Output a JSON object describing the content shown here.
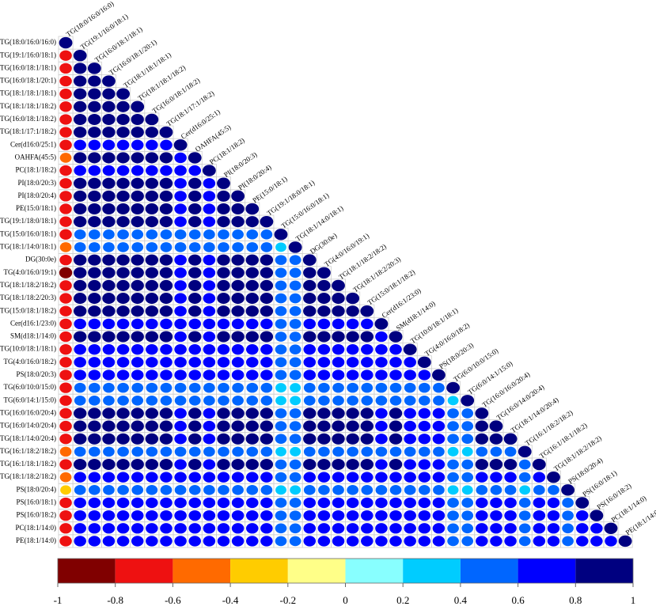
{
  "chart_data": {
    "type": "corrplot",
    "labels": [
      "TG(18:0/16:0/16:0)",
      "TG(19:1/16:0/18:1)",
      "TG(16:0/18:1/18:1)",
      "TG(16:0/18:1/20:1)",
      "TG(18:1/18:1/18:1)",
      "TG(18:1/18:1/18:2)",
      "TG(16:0/18:1/18:2)",
      "TG(18:1/17:1/18:2)",
      "Cer(d16:0/25:1)",
      "OAHFA(45:5)",
      "PC(18:1/18:2)",
      "PI(18:0/20:3)",
      "PI(18:0/20:4)",
      "PE(15:0/18:1)",
      "TG(19:1/18:0/18:1)",
      "TG(15:0/16:0/18:1)",
      "TG(18:1/14:0/18:1)",
      "DG(30:0e)",
      "TG(4:0/16:0/19:1)",
      "TG(18:1/18:2/18:2)",
      "TG(18:1/18:2/20:3)",
      "TG(15:0/18:1/18:2)",
      "Cer(d16:1/23:0)",
      "SM(d18:1/14:0)",
      "TG(10:0/18:1/18:1)",
      "TG(4:0/16:0/18:2)",
      "PS(18:0/20:3)",
      "TG(6:0/10:0/15:0)",
      "TG(6:0/14:1/15:0)",
      "TG(16:0/16:0/20:4)",
      "TG(16:0/14:0/20:4)",
      "TG(18:1/14:0/20:4)",
      "TG(16:1/18:2/18:2)",
      "TG(16:1/18:1/18:2)",
      "TG(18:1/18:2/18:2)",
      "PS(18:0/20:4)",
      "PS(16:0/18:1)",
      "PS(16:0/18:2)",
      "PC(18:1/14:0)",
      "PE(18:1/14:0)"
    ],
    "values": [
      [
        1
      ],
      [
        -0.7,
        1
      ],
      [
        -0.7,
        0.9,
        1
      ],
      [
        -0.7,
        0.9,
        0.9,
        1
      ],
      [
        -0.7,
        0.9,
        0.9,
        0.9,
        1
      ],
      [
        -0.7,
        0.9,
        0.9,
        0.9,
        0.9,
        1
      ],
      [
        -0.7,
        0.9,
        0.9,
        0.9,
        0.9,
        0.9,
        1
      ],
      [
        -0.7,
        0.9,
        0.9,
        0.9,
        0.9,
        0.9,
        0.9,
        1
      ],
      [
        -0.7,
        0.7,
        0.7,
        0.7,
        0.7,
        0.7,
        0.7,
        0.7,
        1
      ],
      [
        -0.5,
        0.9,
        0.9,
        0.9,
        0.9,
        0.9,
        0.9,
        0.9,
        0.7,
        1
      ],
      [
        -0.7,
        0.7,
        0.7,
        0.7,
        0.7,
        0.7,
        0.7,
        0.7,
        0.7,
        0.7,
        1
      ],
      [
        -0.7,
        0.9,
        0.9,
        0.9,
        0.9,
        0.9,
        0.9,
        0.9,
        0.7,
        0.9,
        0.7,
        1
      ],
      [
        -0.7,
        0.9,
        0.9,
        0.9,
        0.9,
        0.9,
        0.9,
        0.9,
        0.7,
        0.9,
        0.7,
        0.9,
        1
      ],
      [
        -0.7,
        0.9,
        0.9,
        0.9,
        0.9,
        0.9,
        0.9,
        0.9,
        0.7,
        0.9,
        0.7,
        0.9,
        0.9,
        1
      ],
      [
        -0.7,
        0.9,
        0.9,
        0.9,
        0.9,
        0.9,
        0.9,
        0.9,
        0.7,
        0.9,
        0.7,
        0.9,
        0.9,
        0.9,
        1
      ],
      [
        -0.7,
        0.5,
        0.5,
        0.5,
        0.5,
        0.5,
        0.5,
        0.5,
        0.5,
        0.5,
        0.5,
        0.5,
        0.5,
        0.5,
        0.5,
        1
      ],
      [
        -0.5,
        0.5,
        0.5,
        0.5,
        0.5,
        0.5,
        0.5,
        0.5,
        0.5,
        0.5,
        0.5,
        0.5,
        0.5,
        0.5,
        0.5,
        0.3,
        1
      ],
      [
        -0.7,
        0.9,
        0.9,
        0.9,
        0.9,
        0.9,
        0.9,
        0.9,
        0.7,
        0.9,
        0.7,
        0.9,
        0.9,
        0.9,
        0.9,
        0.5,
        0.5,
        1
      ],
      [
        -0.9,
        0.9,
        0.9,
        0.9,
        0.9,
        0.9,
        0.9,
        0.9,
        0.7,
        0.9,
        0.7,
        0.9,
        0.9,
        0.9,
        0.9,
        0.5,
        0.5,
        0.9,
        1
      ],
      [
        -0.7,
        0.9,
        0.9,
        0.9,
        0.9,
        0.9,
        0.9,
        0.9,
        0.7,
        0.9,
        0.7,
        0.9,
        0.9,
        0.9,
        0.9,
        0.5,
        0.5,
        0.9,
        0.9,
        1
      ],
      [
        -0.7,
        0.9,
        0.9,
        0.9,
        0.9,
        0.9,
        0.9,
        0.9,
        0.7,
        0.9,
        0.7,
        0.9,
        0.9,
        0.9,
        0.9,
        0.5,
        0.5,
        0.9,
        0.9,
        0.9,
        1
      ],
      [
        -0.7,
        0.9,
        0.9,
        0.9,
        0.9,
        0.9,
        0.9,
        0.9,
        0.7,
        0.9,
        0.7,
        0.9,
        0.9,
        0.9,
        0.9,
        0.5,
        0.5,
        0.9,
        0.9,
        0.9,
        0.9,
        1
      ],
      [
        -0.7,
        0.7,
        0.7,
        0.7,
        0.7,
        0.7,
        0.7,
        0.7,
        0.7,
        0.7,
        0.7,
        0.7,
        0.7,
        0.7,
        0.7,
        0.5,
        0.5,
        0.7,
        0.7,
        0.7,
        0.7,
        0.7,
        1
      ],
      [
        -0.7,
        0.9,
        0.9,
        0.9,
        0.9,
        0.9,
        0.9,
        0.9,
        0.7,
        0.9,
        0.7,
        0.9,
        0.9,
        0.9,
        0.9,
        0.5,
        0.5,
        0.9,
        0.9,
        0.9,
        0.9,
        0.9,
        0.7,
        1
      ],
      [
        -0.7,
        0.7,
        0.7,
        0.7,
        0.7,
        0.7,
        0.7,
        0.7,
        0.7,
        0.7,
        0.7,
        0.7,
        0.7,
        0.7,
        0.7,
        0.5,
        0.5,
        0.7,
        0.7,
        0.7,
        0.7,
        0.7,
        0.7,
        0.7,
        1
      ],
      [
        -0.7,
        0.7,
        0.7,
        0.7,
        0.7,
        0.7,
        0.7,
        0.7,
        0.7,
        0.7,
        0.7,
        0.7,
        0.7,
        0.7,
        0.7,
        0.5,
        0.5,
        0.7,
        0.7,
        0.7,
        0.7,
        0.7,
        0.7,
        0.7,
        0.7,
        1
      ],
      [
        -0.7,
        0.7,
        0.7,
        0.7,
        0.7,
        0.7,
        0.7,
        0.7,
        0.7,
        0.7,
        0.7,
        0.7,
        0.7,
        0.7,
        0.7,
        0.5,
        0.5,
        0.7,
        0.7,
        0.7,
        0.7,
        0.7,
        0.7,
        0.7,
        0.7,
        0.7,
        1
      ],
      [
        -0.7,
        0.5,
        0.5,
        0.5,
        0.5,
        0.5,
        0.5,
        0.5,
        0.5,
        0.5,
        0.5,
        0.5,
        0.5,
        0.5,
        0.5,
        0.3,
        0.3,
        0.5,
        0.5,
        0.5,
        0.5,
        0.5,
        0.5,
        0.5,
        0.5,
        0.5,
        0.5,
        1
      ],
      [
        -0.7,
        0.5,
        0.5,
        0.5,
        0.5,
        0.5,
        0.5,
        0.5,
        0.5,
        0.5,
        0.5,
        0.5,
        0.5,
        0.5,
        0.5,
        0.3,
        0.3,
        0.5,
        0.5,
        0.5,
        0.5,
        0.5,
        0.5,
        0.5,
        0.5,
        0.5,
        0.5,
        0.3,
        1
      ],
      [
        -0.7,
        0.9,
        0.9,
        0.9,
        0.9,
        0.9,
        0.9,
        0.9,
        0.7,
        0.9,
        0.7,
        0.9,
        0.9,
        0.9,
        0.9,
        0.5,
        0.5,
        0.9,
        0.9,
        0.9,
        0.9,
        0.9,
        0.7,
        0.9,
        0.7,
        0.7,
        0.7,
        0.5,
        0.5,
        1
      ],
      [
        -0.7,
        0.9,
        0.9,
        0.9,
        0.9,
        0.9,
        0.9,
        0.9,
        0.7,
        0.9,
        0.7,
        0.9,
        0.9,
        0.9,
        0.9,
        0.5,
        0.5,
        0.9,
        0.9,
        0.9,
        0.9,
        0.9,
        0.7,
        0.9,
        0.7,
        0.7,
        0.7,
        0.5,
        0.5,
        0.9,
        1
      ],
      [
        -0.7,
        0.9,
        0.9,
        0.9,
        0.9,
        0.9,
        0.9,
        0.9,
        0.7,
        0.9,
        0.7,
        0.9,
        0.9,
        0.9,
        0.9,
        0.5,
        0.5,
        0.9,
        0.9,
        0.9,
        0.9,
        0.9,
        0.7,
        0.9,
        0.7,
        0.7,
        0.7,
        0.5,
        0.5,
        0.9,
        0.9,
        1
      ],
      [
        -0.5,
        0.5,
        0.5,
        0.5,
        0.5,
        0.5,
        0.5,
        0.5,
        0.5,
        0.5,
        0.5,
        0.5,
        0.5,
        0.5,
        0.5,
        0.3,
        0.3,
        0.5,
        0.5,
        0.5,
        0.5,
        0.5,
        0.5,
        0.5,
        0.5,
        0.5,
        0.5,
        0.3,
        0.3,
        0.5,
        0.5,
        0.5,
        1
      ],
      [
        -0.7,
        0.9,
        0.9,
        0.9,
        0.9,
        0.9,
        0.9,
        0.9,
        0.7,
        0.9,
        0.7,
        0.9,
        0.9,
        0.9,
        0.9,
        0.5,
        0.5,
        0.9,
        0.9,
        0.9,
        0.9,
        0.9,
        0.7,
        0.9,
        0.7,
        0.7,
        0.7,
        0.5,
        0.5,
        0.9,
        0.9,
        0.9,
        0.5,
        1
      ],
      [
        -0.5,
        0.7,
        0.7,
        0.7,
        0.7,
        0.7,
        0.7,
        0.7,
        0.7,
        0.7,
        0.7,
        0.7,
        0.7,
        0.7,
        0.7,
        0.5,
        0.5,
        0.7,
        0.7,
        0.7,
        0.7,
        0.7,
        0.7,
        0.7,
        0.7,
        0.7,
        0.7,
        0.5,
        0.5,
        0.7,
        0.7,
        0.7,
        0.5,
        0.7,
        1
      ],
      [
        -0.3,
        0.5,
        0.5,
        0.5,
        0.5,
        0.5,
        0.5,
        0.5,
        0.5,
        0.5,
        0.5,
        0.5,
        0.5,
        0.5,
        0.5,
        0.3,
        0.3,
        0.5,
        0.5,
        0.5,
        0.5,
        0.5,
        0.5,
        0.5,
        0.5,
        0.5,
        0.5,
        0.3,
        0.3,
        0.5,
        0.5,
        0.5,
        0.3,
        0.5,
        0.5,
        1
      ],
      [
        -0.7,
        0.7,
        0.7,
        0.7,
        0.7,
        0.7,
        0.7,
        0.7,
        0.7,
        0.7,
        0.7,
        0.7,
        0.7,
        0.7,
        0.7,
        0.5,
        0.5,
        0.7,
        0.7,
        0.7,
        0.7,
        0.7,
        0.7,
        0.7,
        0.7,
        0.7,
        0.7,
        0.5,
        0.5,
        0.7,
        0.7,
        0.7,
        0.5,
        0.7,
        0.7,
        0.5,
        1
      ],
      [
        -0.7,
        0.7,
        0.7,
        0.7,
        0.7,
        0.7,
        0.7,
        0.7,
        0.7,
        0.7,
        0.7,
        0.7,
        0.7,
        0.7,
        0.7,
        0.5,
        0.5,
        0.7,
        0.7,
        0.7,
        0.7,
        0.7,
        0.7,
        0.7,
        0.7,
        0.7,
        0.7,
        0.5,
        0.5,
        0.7,
        0.7,
        0.7,
        0.5,
        0.7,
        0.7,
        0.5,
        0.7,
        1
      ],
      [
        -0.7,
        0.7,
        0.7,
        0.7,
        0.7,
        0.7,
        0.7,
        0.7,
        0.7,
        0.7,
        0.7,
        0.7,
        0.7,
        0.7,
        0.7,
        0.5,
        0.5,
        0.7,
        0.7,
        0.7,
        0.7,
        0.7,
        0.7,
        0.7,
        0.7,
        0.7,
        0.7,
        0.5,
        0.5,
        0.7,
        0.7,
        0.7,
        0.5,
        0.7,
        0.7,
        0.5,
        0.7,
        0.7,
        1
      ],
      [
        -0.7,
        0.7,
        0.7,
        0.7,
        0.7,
        0.7,
        0.7,
        0.7,
        0.7,
        0.7,
        0.7,
        0.7,
        0.7,
        0.7,
        0.7,
        0.5,
        0.5,
        0.7,
        0.7,
        0.7,
        0.7,
        0.7,
        0.7,
        0.7,
        0.7,
        0.7,
        0.7,
        0.5,
        0.5,
        0.7,
        0.7,
        0.7,
        0.5,
        0.7,
        0.7,
        0.5,
        0.7,
        0.7,
        0.7,
        1
      ]
    ],
    "colorbar": {
      "lim": [
        -1,
        1
      ],
      "ticks": [
        -1,
        -0.8,
        -0.6,
        -0.4,
        -0.2,
        0,
        0.2,
        0.4,
        0.6,
        0.8,
        1
      ],
      "colors": [
        "#800000",
        "#ee1111",
        "#ff6a00",
        "#ffcc00",
        "#ffff88",
        "#88ffff",
        "#00ccff",
        "#0066ff",
        "#0000ff",
        "#000080"
      ]
    }
  }
}
